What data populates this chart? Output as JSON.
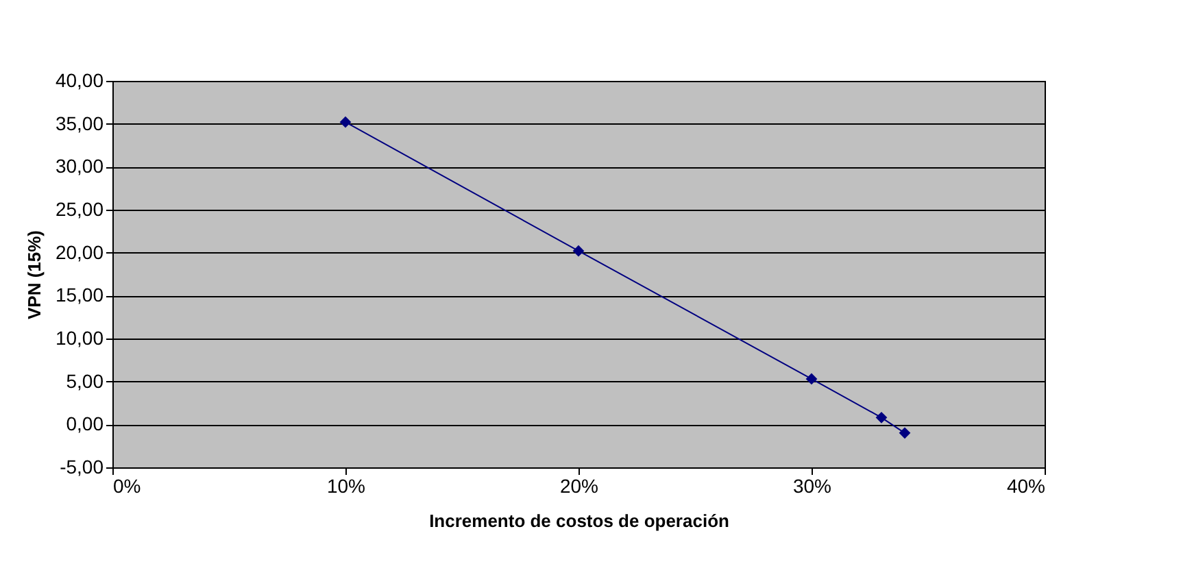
{
  "chart_data": {
    "type": "line",
    "xlabel": "Incremento de costos de operación",
    "ylabel": "VPN (15%)",
    "x": [
      0.1,
      0.2,
      0.3,
      0.33,
      0.34
    ],
    "series": [
      {
        "color": "#000080",
        "values": [
          35.2,
          20.2,
          5.3,
          0.8,
          -1.0
        ]
      }
    ],
    "xlim": [
      0,
      0.4
    ],
    "xticks": [
      {
        "value": 0,
        "label": "0%"
      },
      {
        "value": 0.1,
        "label": "10%"
      },
      {
        "value": 0.2,
        "label": "20%"
      },
      {
        "value": 0.3,
        "label": "30%"
      },
      {
        "value": 0.4,
        "label": "40%"
      }
    ],
    "ylim": [
      -5,
      40
    ],
    "yticks": [
      {
        "value": -5,
        "label": "-5,00"
      },
      {
        "value": 0,
        "label": "0,00"
      },
      {
        "value": 5,
        "label": "5,00"
      },
      {
        "value": 10,
        "label": "10,00"
      },
      {
        "value": 15,
        "label": "15,00"
      },
      {
        "value": 20,
        "label": "20,00"
      },
      {
        "value": 25,
        "label": "25,00"
      },
      {
        "value": 30,
        "label": "30,00"
      },
      {
        "value": 35,
        "label": "35,00"
      },
      {
        "value": 40,
        "label": "40,00"
      }
    ],
    "grid": "y",
    "marker": "diamond",
    "line_style": "solid"
  }
}
